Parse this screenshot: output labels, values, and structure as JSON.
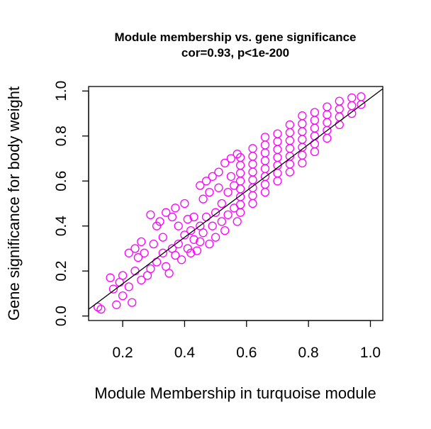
{
  "chart_data": {
    "type": "scatter",
    "title": "Module membership vs. gene significance",
    "subtitle": "cor=0.93, p<1e-200",
    "xlabel": "Module Membership in turquoise module",
    "ylabel": "Gene significance for body weight",
    "xlim": [
      0.09,
      1.04
    ],
    "ylim": [
      -0.02,
      1.02
    ],
    "xticks": [
      0.2,
      0.4,
      0.6,
      0.8,
      1.0
    ],
    "xtick_labels": [
      "0.2",
      "0.4",
      "0.6",
      "0.8",
      "1.0"
    ],
    "yticks": [
      0.0,
      0.2,
      0.4,
      0.6,
      0.8,
      1.0
    ],
    "ytick_labels": [
      "0.0",
      "0.2",
      "0.4",
      "0.6",
      "0.8",
      "1.0"
    ],
    "point_color": "#ff00ff",
    "marker": "open-circle",
    "regression_line": {
      "color": "#000000",
      "from": [
        0.09,
        0.03
      ],
      "to": [
        1.04,
        1.01
      ]
    },
    "grid": false,
    "legend": "none",
    "series": [
      {
        "points": [
          [
            0.12,
            0.04
          ],
          [
            0.13,
            0.03
          ],
          [
            0.16,
            0.17
          ],
          [
            0.17,
            0.12
          ],
          [
            0.18,
            0.05
          ],
          [
            0.19,
            0.15
          ],
          [
            0.2,
            0.09
          ],
          [
            0.2,
            0.18
          ],
          [
            0.22,
            0.13
          ],
          [
            0.23,
            0.06
          ],
          [
            0.22,
            0.28
          ],
          [
            0.24,
            0.3
          ],
          [
            0.24,
            0.2
          ],
          [
            0.25,
            0.26
          ],
          [
            0.26,
            0.16
          ],
          [
            0.26,
            0.33
          ],
          [
            0.27,
            0.28
          ],
          [
            0.28,
            0.18
          ],
          [
            0.29,
            0.21
          ],
          [
            0.29,
            0.45
          ],
          [
            0.3,
            0.32
          ],
          [
            0.31,
            0.4
          ],
          [
            0.31,
            0.24
          ],
          [
            0.32,
            0.42
          ],
          [
            0.33,
            0.35
          ],
          [
            0.33,
            0.28
          ],
          [
            0.34,
            0.22
          ],
          [
            0.34,
            0.46
          ],
          [
            0.35,
            0.19
          ],
          [
            0.36,
            0.44
          ],
          [
            0.36,
            0.3
          ],
          [
            0.37,
            0.27
          ],
          [
            0.37,
            0.48
          ],
          [
            0.38,
            0.32
          ],
          [
            0.38,
            0.4
          ],
          [
            0.39,
            0.25
          ],
          [
            0.4,
            0.36
          ],
          [
            0.4,
            0.5
          ],
          [
            0.41,
            0.3
          ],
          [
            0.41,
            0.43
          ],
          [
            0.42,
            0.28
          ],
          [
            0.42,
            0.38
          ],
          [
            0.43,
            0.34
          ],
          [
            0.43,
            0.44
          ],
          [
            0.44,
            0.29
          ],
          [
            0.45,
            0.4
          ],
          [
            0.45,
            0.58
          ],
          [
            0.45,
            0.33
          ],
          [
            0.46,
            0.52
          ],
          [
            0.46,
            0.37
          ],
          [
            0.47,
            0.6
          ],
          [
            0.47,
            0.44
          ],
          [
            0.48,
            0.32
          ],
          [
            0.48,
            0.55
          ],
          [
            0.49,
            0.4
          ],
          [
            0.49,
            0.62
          ],
          [
            0.5,
            0.46
          ],
          [
            0.5,
            0.35
          ],
          [
            0.51,
            0.57
          ],
          [
            0.51,
            0.64
          ],
          [
            0.52,
            0.42
          ],
          [
            0.52,
            0.5
          ],
          [
            0.53,
            0.68
          ],
          [
            0.53,
            0.38
          ],
          [
            0.54,
            0.55
          ],
          [
            0.54,
            0.45
          ],
          [
            0.55,
            0.62
          ],
          [
            0.55,
            0.7
          ],
          [
            0.56,
            0.48
          ],
          [
            0.56,
            0.58
          ],
          [
            0.57,
            0.72
          ],
          [
            0.57,
            0.42
          ]
        ]
      }
    ]
  }
}
